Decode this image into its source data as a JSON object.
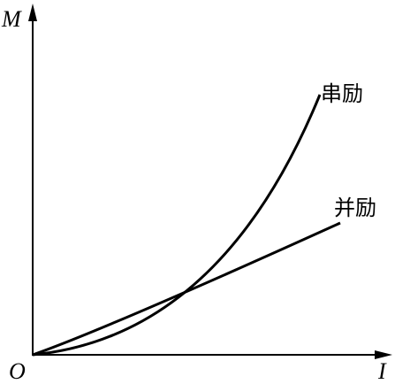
{
  "axes": {
    "y_label": "M",
    "x_label": "I",
    "origin": "O"
  },
  "curves": [
    {
      "label": "串励"
    },
    {
      "label": "并励"
    }
  ]
}
